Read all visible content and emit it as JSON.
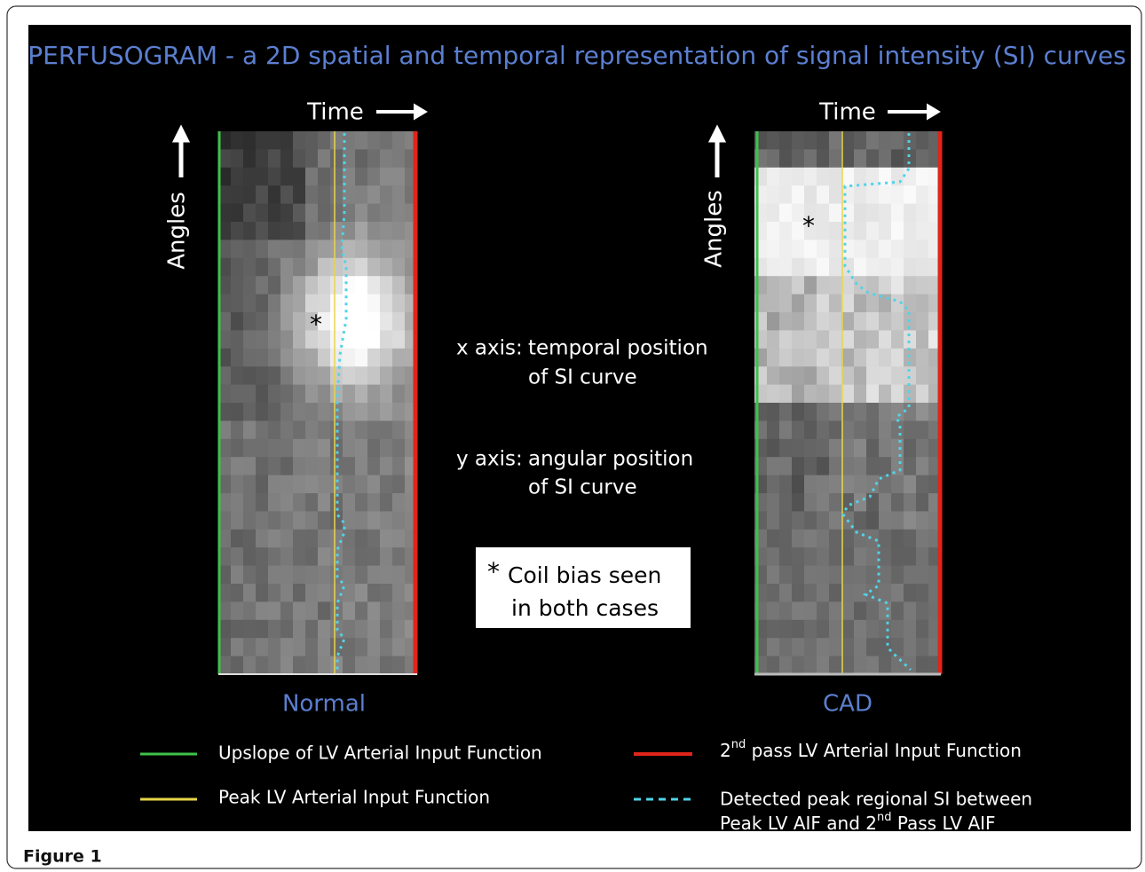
{
  "header": {
    "title": "PERFUSOGRAM - a 2D spatial and temporal representation of signal intensity (SI) curves"
  },
  "panels": [
    {
      "time_label": "Time",
      "angles_label": "Angles",
      "asterisk": "*",
      "label": "Normal"
    },
    {
      "time_label": "Time",
      "angles_label": "Angles",
      "asterisk": "*",
      "label": "CAD"
    }
  ],
  "center": {
    "x_axis": {
      "label": "x axis:",
      "lines": [
        "temporal position",
        "of SI curve"
      ]
    },
    "y_axis": {
      "label": "y axis:",
      "lines": [
        "angular position",
        "of SI curve"
      ]
    }
  },
  "note": {
    "asterisk": "*",
    "lines": [
      "Coil bias seen",
      "in both cases"
    ]
  },
  "legend": {
    "items": [
      {
        "text": "Upslope of LV Arterial Input Function"
      },
      {
        "text": "Peak LV Arterial Input Function"
      },
      {
        "before": "2",
        "sup": "nd",
        "after": " pass LV Arterial Input Function"
      },
      {
        "line1": "Detected peak regional SI between",
        "before": "Peak LV AIF and  2",
        "sup": "nd",
        "after": " Pass LV AIF"
      }
    ]
  },
  "caption": "Figure 1"
}
